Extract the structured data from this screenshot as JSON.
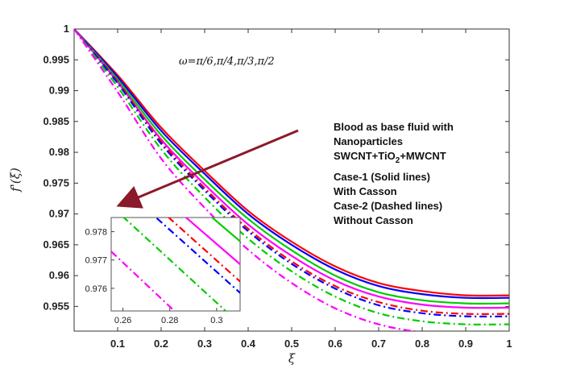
{
  "chart_data": {
    "type": "line",
    "title": "",
    "xlabel": "ξ",
    "ylabel": "f'(ξ)",
    "xlim": [
      0,
      1
    ],
    "ylim": [
      0.951,
      1.0
    ],
    "xticks": [
      "0.1",
      "0.2",
      "0.3",
      "0.4",
      "0.5",
      "0.6",
      "0.7",
      "0.8",
      "0.9",
      "1"
    ],
    "xtick_values": [
      0.1,
      0.2,
      0.3,
      0.4,
      0.5,
      0.6,
      0.7,
      0.8,
      0.9,
      1.0
    ],
    "yticks": [
      "0.955",
      "0.96",
      "0.965",
      "0.97",
      "0.975",
      "0.98",
      "0.985",
      "0.99",
      "0.995",
      "1"
    ],
    "ytick_values": [
      0.955,
      0.96,
      0.965,
      0.97,
      0.975,
      0.98,
      0.985,
      0.99,
      0.995,
      1.0
    ],
    "grid": false,
    "x": [
      0,
      0.1,
      0.2,
      0.3,
      0.4,
      0.5,
      0.6,
      0.7,
      0.8,
      0.9,
      1.0
    ],
    "series": [
      {
        "color": "#ff0000",
        "style": "solid",
        "values": [
          1.0,
          0.9925,
          0.984,
          0.977,
          0.9705,
          0.9655,
          0.9615,
          0.9588,
          0.9575,
          0.9568,
          0.9568
        ]
      },
      {
        "color": "#0000ff",
        "style": "solid",
        "values": [
          1.0,
          0.9922,
          0.9835,
          0.9765,
          0.97,
          0.965,
          0.961,
          0.9583,
          0.957,
          0.9564,
          0.9564
        ]
      },
      {
        "color": "#00cc00",
        "style": "solid",
        "values": [
          1.0,
          0.9918,
          0.9828,
          0.9756,
          0.9692,
          0.9641,
          0.96,
          0.9573,
          0.956,
          0.9555,
          0.9555
        ]
      },
      {
        "color": "#ff00ff",
        "style": "solid",
        "values": [
          1.0,
          0.9914,
          0.9821,
          0.9748,
          0.9683,
          0.9632,
          0.9592,
          0.9566,
          0.9553,
          0.9548,
          0.9548
        ]
      },
      {
        "color": "#ff0000",
        "style": "dashed",
        "values": [
          1.0,
          0.9915,
          0.9818,
          0.9742,
          0.9676,
          0.9623,
          0.9583,
          0.9557,
          0.9543,
          0.9538,
          0.9538
        ]
      },
      {
        "color": "#0000ff",
        "style": "dashed",
        "values": [
          1.0,
          0.9912,
          0.9814,
          0.9738,
          0.9672,
          0.9619,
          0.9579,
          0.9552,
          0.9539,
          0.9534,
          0.9534
        ]
      },
      {
        "color": "#00cc00",
        "style": "dashed",
        "values": [
          1.0,
          0.9906,
          0.9805,
          0.9727,
          0.966,
          0.9607,
          0.9566,
          0.9539,
          0.9526,
          0.9521,
          0.9521
        ]
      },
      {
        "color": "#ff00ff",
        "style": "dashed",
        "values": [
          1.0,
          0.9898,
          0.979,
          0.971,
          0.9642,
          0.9588,
          0.9547,
          0.9521,
          0.9508,
          0.9503,
          0.9503
        ]
      }
    ],
    "annotations": {
      "omega": "ω=π/6,π/4,π/3,π/2",
      "legend_lines": [
        "Blood as base fluid with",
        "Nanoparticles",
        "SWCNT+TiO",
        "2",
        "+MWCNT",
        "Case-1 (Solid lines)",
        "With Casson",
        "Case-2 (Dashed lines)",
        "Without Casson"
      ]
    },
    "inset": {
      "xlim": [
        0.255,
        0.31
      ],
      "ylim": [
        0.9752,
        0.9785
      ],
      "xticks": [
        "0.26",
        "0.28",
        "0.3"
      ],
      "xtick_values": [
        0.26,
        0.28,
        0.3
      ],
      "yticks": [
        "0.976",
        "0.977",
        "0.978"
      ],
      "ytick_values": [
        0.976,
        0.977,
        0.978
      ]
    }
  }
}
